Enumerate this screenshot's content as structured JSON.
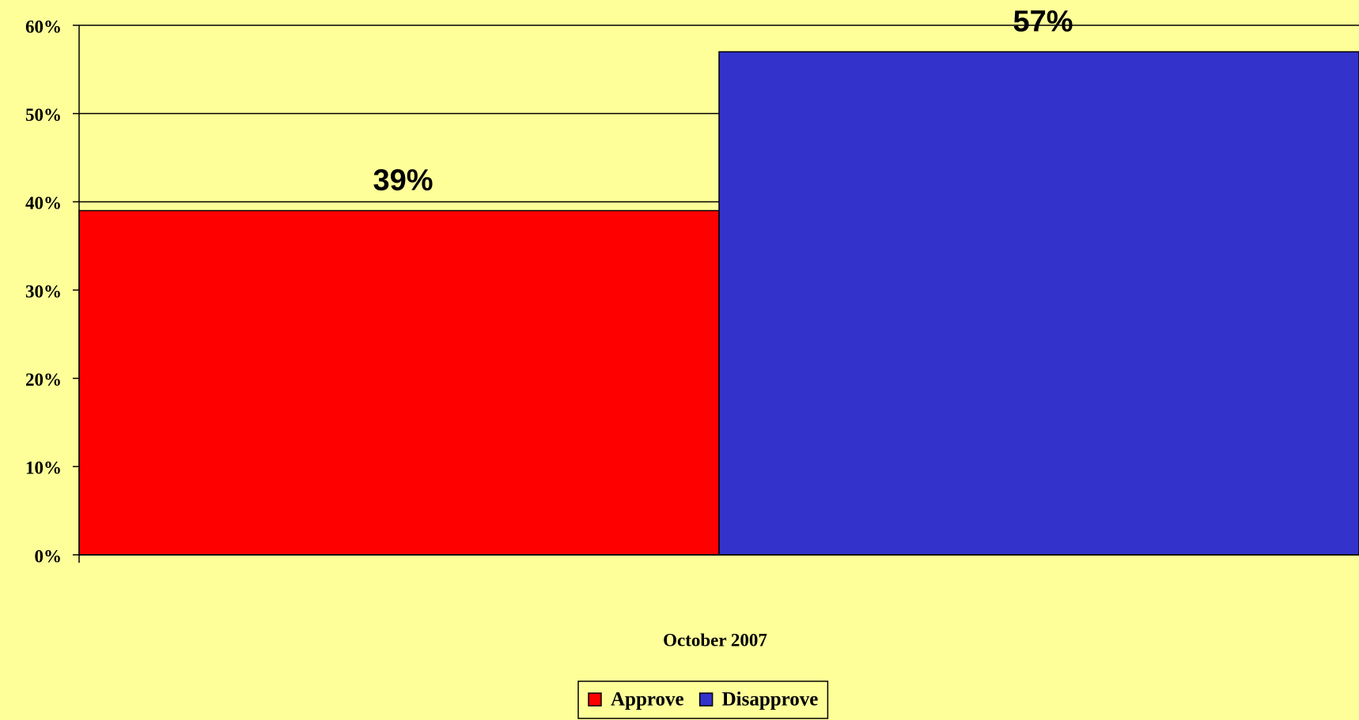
{
  "chart_data": {
    "type": "bar",
    "categories": [
      "October 2007"
    ],
    "series": [
      {
        "name": "Approve",
        "color": "#ff0000",
        "values": [
          39
        ],
        "value_labels": [
          "39%"
        ]
      },
      {
        "name": "Disapprove",
        "color": "#3333cc",
        "values": [
          57
        ],
        "value_labels": [
          "57%"
        ]
      }
    ],
    "ylim": [
      0,
      60
    ],
    "yticks": [
      {
        "value": 0,
        "label": "0%"
      },
      {
        "value": 10,
        "label": "10%"
      },
      {
        "value": 20,
        "label": "20%"
      },
      {
        "value": 30,
        "label": "30%"
      },
      {
        "value": 40,
        "label": "40%"
      },
      {
        "value": 50,
        "label": "50%"
      },
      {
        "value": 60,
        "label": "60%"
      }
    ],
    "grid": true,
    "legend": "bottom"
  }
}
